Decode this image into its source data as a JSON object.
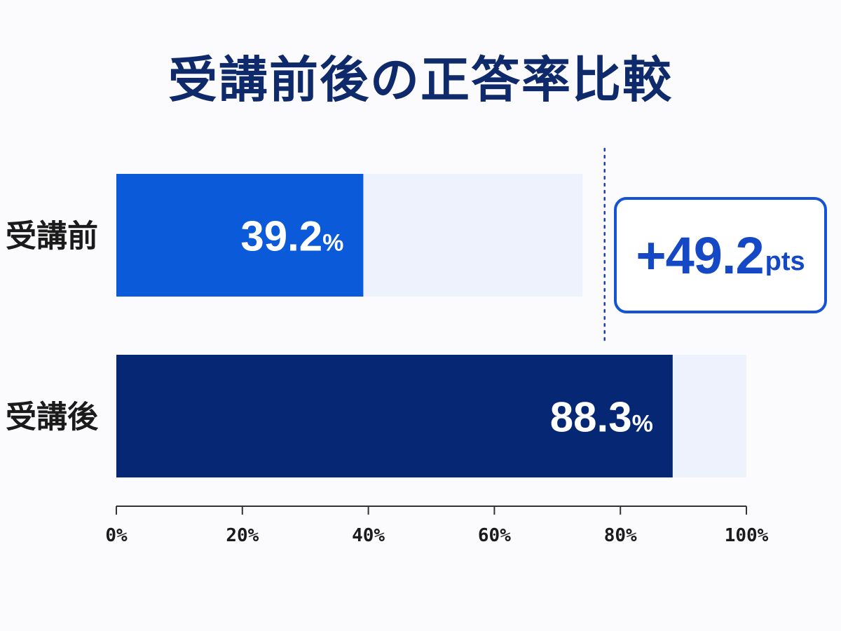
{
  "chart_data": {
    "type": "bar",
    "orientation": "horizontal",
    "title": "受講前後の正答率比較",
    "categories": [
      "受講前",
      "受講後"
    ],
    "values": [
      39.2,
      88.3
    ],
    "value_labels": [
      "39.2",
      "88.3"
    ],
    "value_unit": "%",
    "bar_colors": [
      "#0b5ad9",
      "#052774"
    ],
    "track_color": "#eef2fc",
    "track_ends": [
      74,
      100
    ],
    "xlim": [
      0,
      100
    ],
    "x_ticks": [
      "0%",
      "20%",
      "40%",
      "60%",
      "80%",
      "100%"
    ],
    "x_tick_values": [
      0,
      20,
      40,
      60,
      80,
      100
    ],
    "reference_line": 77.5,
    "grid": false,
    "annotation": {
      "value": "+49.2",
      "unit": "pts"
    }
  },
  "colors": {
    "title": "#0f2a6b",
    "badge_border": "#1552d6",
    "badge_text": "#1448c4",
    "dashed_line": "#1e3fa8",
    "axis": "#333333",
    "background": "#fbfbfe"
  }
}
